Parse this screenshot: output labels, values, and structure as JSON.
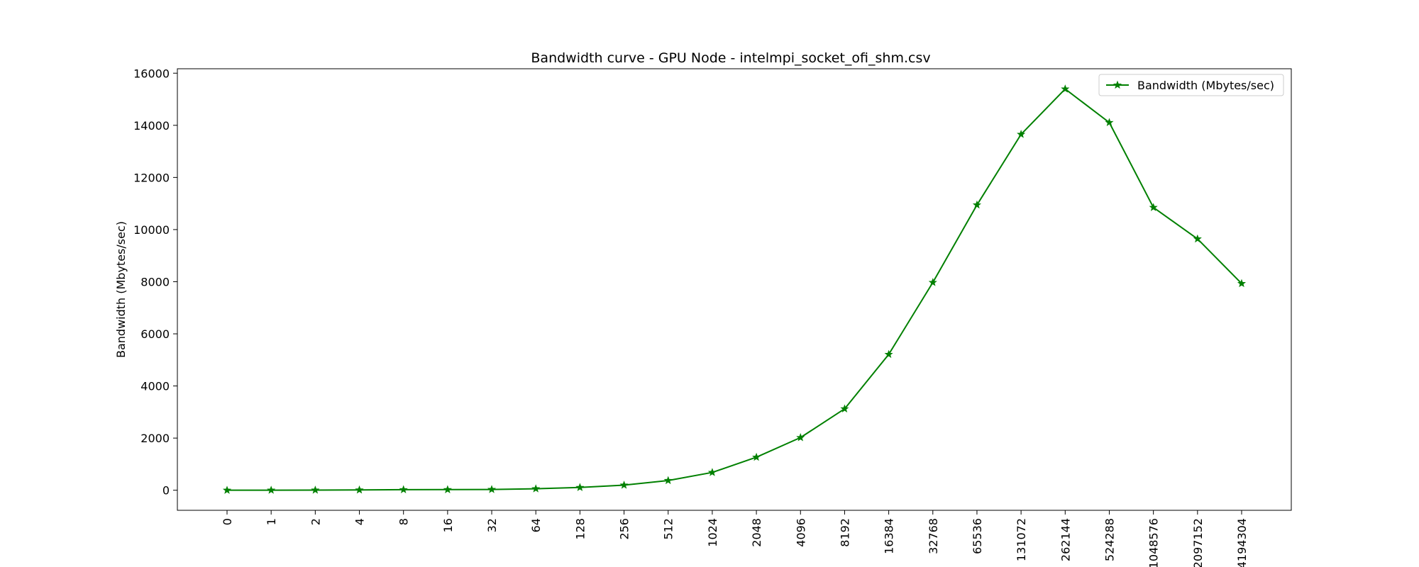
{
  "chart_data": {
    "type": "line",
    "title": "Bandwidth curve - GPU Node - intelmpi_socket_ofi_shm.csv",
    "xlabel": "",
    "ylabel": "Bandwidth (Mbytes/sec)",
    "categories": [
      "0",
      "1",
      "2",
      "4",
      "8",
      "16",
      "32",
      "64",
      "128",
      "256",
      "512",
      "1024",
      "2048",
      "4096",
      "8192",
      "16384",
      "32768",
      "65536",
      "131072",
      "262144",
      "524288",
      "1048576",
      "2097152",
      "4194304"
    ],
    "series": [
      {
        "name": "Bandwidth (Mbytes/sec)",
        "color": "#008000",
        "marker": "star",
        "values": [
          0,
          3,
          6,
          11,
          22,
          24,
          30,
          57,
          106,
          196,
          373,
          683,
          1267,
          2020,
          3123,
          5212,
          7971,
          10945,
          13654,
          15394,
          14107,
          10849,
          9642,
          7930
        ]
      }
    ],
    "ylim": [
      -770,
      16170
    ],
    "yticks": [
      0,
      2000,
      4000,
      6000,
      8000,
      10000,
      12000,
      14000,
      16000
    ],
    "grid": false,
    "legend_position": "upper right"
  }
}
